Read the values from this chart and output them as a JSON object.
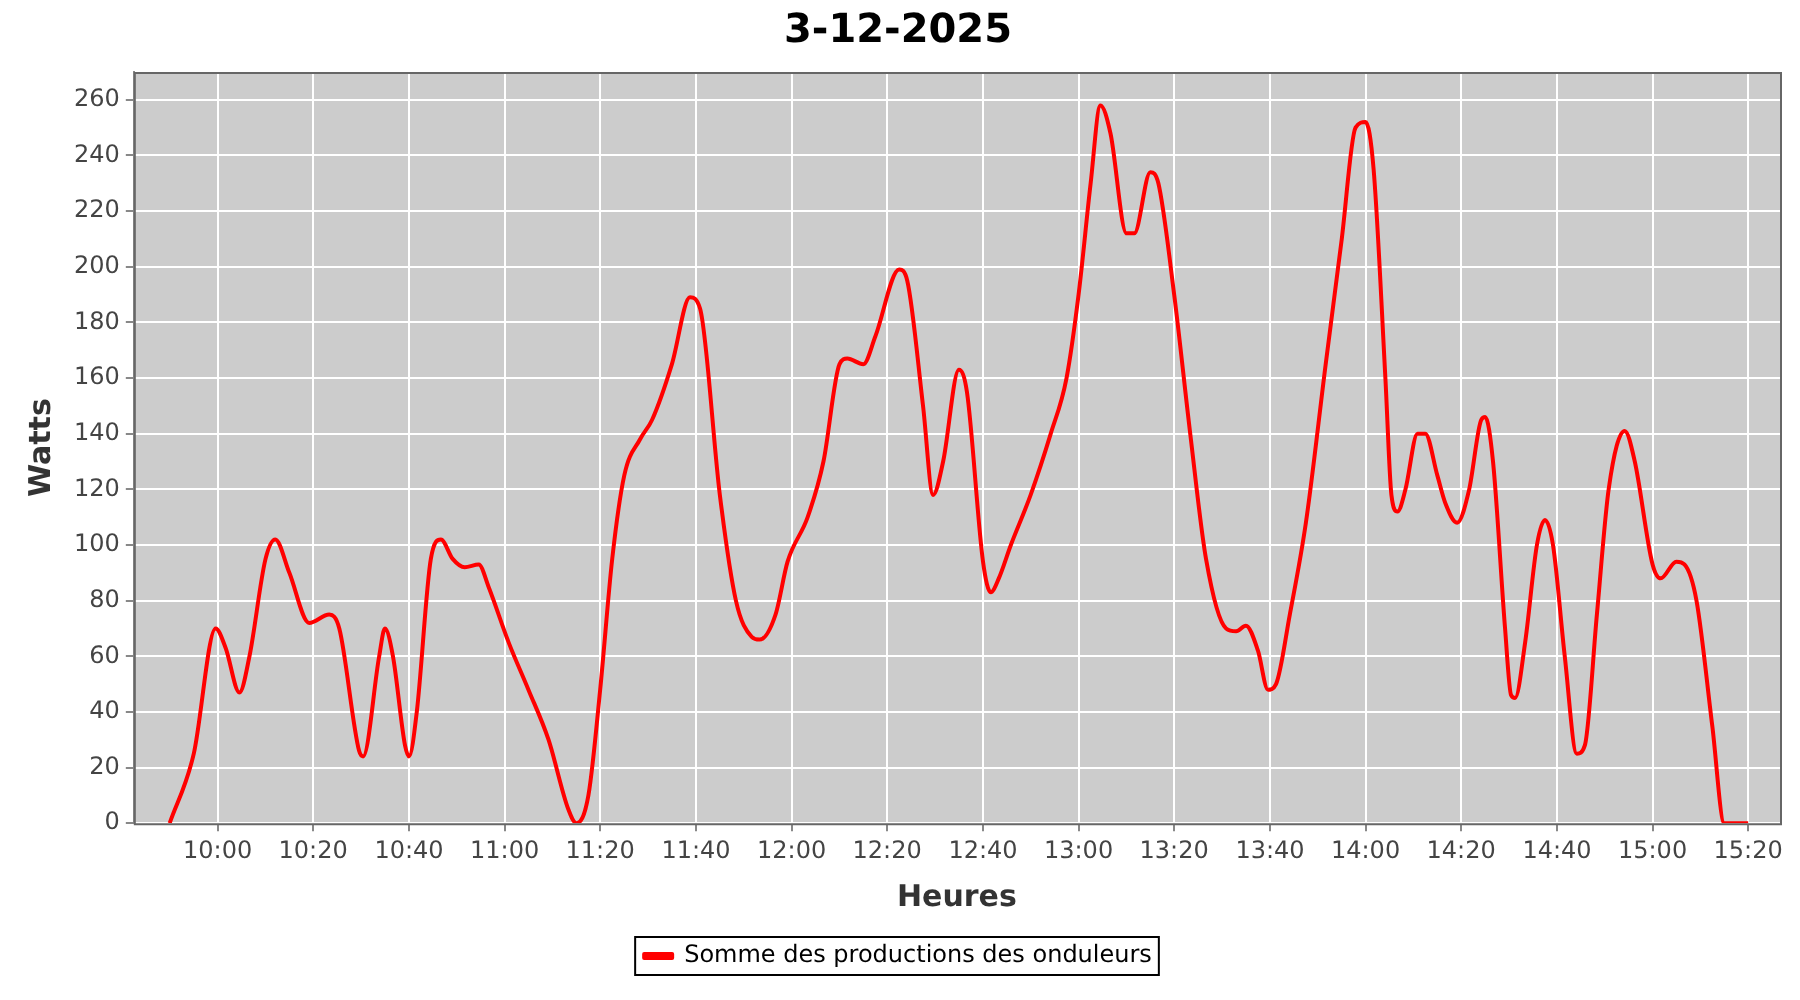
{
  "chart_data": {
    "type": "line",
    "title": "3-12-2025",
    "xlabel": "Heures",
    "ylabel": "Watts",
    "xlim": [
      9.708,
      15.444
    ],
    "xticks": [
      {
        "value": 10,
        "label": "10:00"
      },
      {
        "value": 10.333,
        "label": "10:20"
      },
      {
        "value": 10.667,
        "label": "10:40"
      },
      {
        "value": 11,
        "label": "11:00"
      },
      {
        "value": 11.333,
        "label": "11:20"
      },
      {
        "value": 11.667,
        "label": "11:40"
      },
      {
        "value": 12,
        "label": "12:00"
      },
      {
        "value": 12.333,
        "label": "12:20"
      },
      {
        "value": 12.667,
        "label": "12:40"
      },
      {
        "value": 13,
        "label": "13:00"
      },
      {
        "value": 13.333,
        "label": "13:20"
      },
      {
        "value": 13.667,
        "label": "13:40"
      },
      {
        "value": 14,
        "label": "14:00"
      },
      {
        "value": 14.333,
        "label": "14:20"
      },
      {
        "value": 14.667,
        "label": "14:40"
      },
      {
        "value": 15,
        "label": "15:00"
      },
      {
        "value": 15.333,
        "label": "15:20"
      }
    ],
    "ylim": [
      0,
      270
    ],
    "yticks": [
      0,
      20,
      40,
      60,
      80,
      100,
      120,
      140,
      160,
      180,
      200,
      220,
      240,
      260
    ],
    "grid": true,
    "legend": "bottom",
    "marker": "none",
    "line_style": "solid",
    "series": [
      {
        "name": "Somme des productions des onduleurs",
        "color": "#ff0000",
        "x": [
          9.833,
          9.917,
          9.993,
          10.028,
          10.076,
          10.111,
          10.167,
          10.201,
          10.25,
          10.319,
          10.389,
          10.424,
          10.493,
          10.507,
          10.563,
          10.583,
          10.611,
          10.653,
          10.667,
          10.694,
          10.743,
          10.778,
          10.819,
          10.861,
          10.91,
          10.944,
          11.014,
          11.083,
          11.153,
          11.222,
          11.25,
          11.292,
          11.333,
          11.375,
          11.417,
          11.472,
          11.514,
          11.583,
          11.646,
          11.681,
          11.75,
          11.806,
          11.861,
          11.889,
          11.944,
          11.986,
          12.056,
          12.111,
          12.167,
          12.194,
          12.25,
          12.292,
          12.375,
          12.403,
          12.458,
          12.493,
          12.528,
          12.583,
          12.611,
          12.667,
          12.694,
          12.722,
          12.764,
          12.833,
          12.903,
          12.958,
          13.0,
          13.042,
          13.076,
          13.111,
          13.167,
          13.194,
          13.25,
          13.278,
          13.333,
          13.389,
          13.444,
          13.514,
          13.549,
          13.583,
          13.625,
          13.66,
          13.688,
          13.736,
          13.792,
          13.861,
          13.917,
          13.965,
          14.0,
          14.028,
          14.069,
          14.09,
          14.111,
          14.139,
          14.181,
          14.208,
          14.25,
          14.278,
          14.319,
          14.361,
          14.403,
          14.417,
          14.444,
          14.486,
          14.507,
          14.521,
          14.556,
          14.597,
          14.625,
          14.653,
          14.694,
          14.736,
          14.764,
          14.806,
          14.847,
          14.903,
          14.938,
          15.0,
          15.028,
          15.083,
          15.111,
          15.153,
          15.208,
          15.25,
          15.333
        ],
        "values": [
          0,
          25,
          70,
          63,
          47,
          60,
          95,
          102,
          90,
          72,
          75,
          70,
          26,
          24,
          60,
          70,
          60,
          28,
          24,
          40,
          95,
          102,
          95,
          92,
          93,
          85,
          65,
          48,
          30,
          5,
          0,
          10,
          48,
          95,
          125,
          138,
          145,
          165,
          189,
          185,
          118,
          80,
          67,
          66,
          75,
          94,
          110,
          130,
          165,
          167,
          165,
          175,
          199,
          195,
          150,
          118,
          130,
          163,
          155,
          94,
          83,
          88,
          100,
          118,
          140,
          160,
          190,
          230,
          258,
          248,
          212,
          212,
          234,
          230,
          190,
          140,
          95,
          70,
          69,
          71,
          62,
          48,
          50,
          75,
          108,
          165,
          210,
          250,
          252,
          235,
          160,
          118,
          112,
          120,
          140,
          140,
          125,
          115,
          108,
          120,
          145,
          146,
          130,
          70,
          46,
          45,
          65,
          100,
          109,
          100,
          60,
          25,
          28,
          75,
          120,
          141,
          130,
          93,
          88,
          94,
          93,
          80,
          35,
          0,
          0
        ]
      }
    ]
  }
}
